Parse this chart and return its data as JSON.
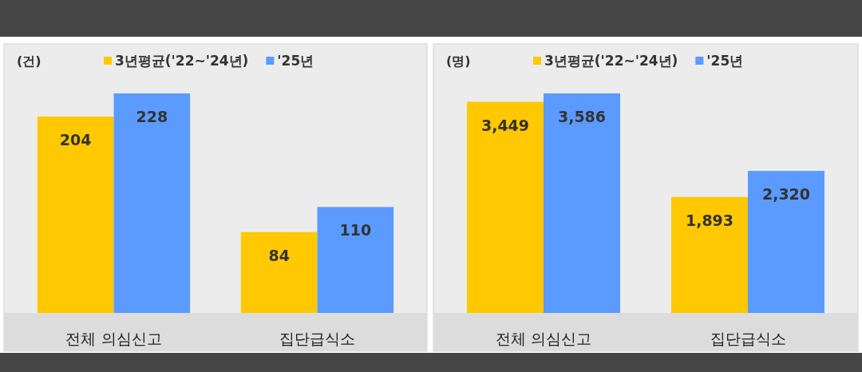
{
  "chart_data": [
    {
      "type": "bar",
      "ylabel": "(건)",
      "categories": [
        "전체 의심신고",
        "집단급식소"
      ],
      "legend": "top",
      "data_labels": true,
      "series": [
        {
          "name": "3년평균('22~'24년)",
          "color": "#ffc800",
          "values": [
            204,
            84
          ]
        },
        {
          "name": "'25년",
          "color": "#5b9bff",
          "values": [
            228,
            110
          ]
        }
      ]
    },
    {
      "type": "bar",
      "ylabel": "(명)",
      "categories": [
        "전체 의심신고",
        "집단급식소"
      ],
      "legend": "top",
      "series": [
        {
          "name": "3년평균('22~'24년)",
          "color": "#ffc800",
          "values": [
            3449,
            1893
          ],
          "value_labels": [
            "3,449",
            "1,893"
          ]
        },
        {
          "name": "'25년",
          "color": "#5b9bff",
          "values": [
            3586,
            2320
          ],
          "value_labels": [
            "3,586",
            "2,320"
          ]
        }
      ]
    }
  ]
}
